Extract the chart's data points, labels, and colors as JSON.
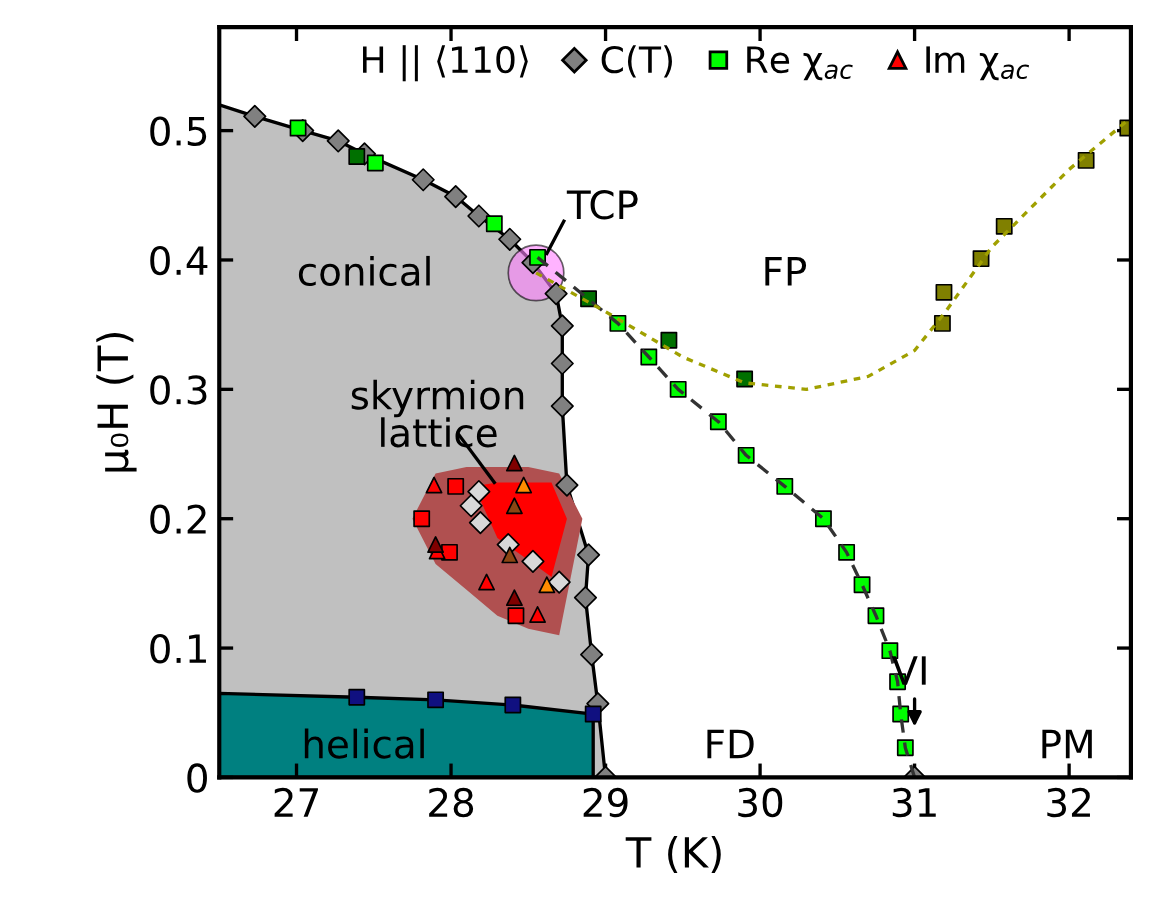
{
  "chart_data": {
    "type": "scatter",
    "xlabel": "T (K)",
    "ylabel": "μ₀H (T)",
    "legend_title": "H || ⟨110⟩",
    "legend": "top",
    "xlim": [
      26.5,
      32.4
    ],
    "ylim": [
      0,
      0.58
    ],
    "xticks": [
      27,
      28,
      29,
      30,
      31,
      32
    ],
    "yticks": [
      0,
      0.1,
      0.2,
      0.3,
      0.4,
      0.5
    ],
    "grid": false,
    "series": [
      {
        "type": "area",
        "color": "#c0c0c0",
        "line_style": "solid",
        "x": [
          26.5,
          26.73,
          27.04,
          27.27,
          27.44,
          27.82,
          28.03,
          28.18,
          28.38,
          28.53,
          28.68,
          28.72,
          28.72,
          28.72,
          28.75,
          28.89,
          28.87,
          28.91,
          28.95,
          29.0,
          26.5
        ],
        "values": [
          0.52,
          0.511,
          0.5,
          0.492,
          0.482,
          0.462,
          0.449,
          0.434,
          0.416,
          0.398,
          0.374,
          0.349,
          0.32,
          0.287,
          0.226,
          0.172,
          0.139,
          0.095,
          0.057,
          0,
          0
        ]
      },
      {
        "type": "area",
        "color": "#008080",
        "line_style": "solid",
        "x": [
          26.5,
          27.39,
          27.9,
          28.4,
          28.92,
          28.92,
          26.5
        ],
        "values": [
          0.065,
          0.062,
          0.06,
          0.056,
          0.049,
          0,
          0
        ]
      },
      {
        "type": "area",
        "color": "#b05050",
        "x": [
          27.75,
          27.9,
          28.1,
          28.3,
          28.5,
          28.7,
          28.85,
          28.7,
          28.5,
          28.3,
          28.1,
          27.9
        ],
        "values": [
          0.2,
          0.235,
          0.24,
          0.24,
          0.24,
          0.235,
          0.2,
          0.11,
          0.115,
          0.125,
          0.145,
          0.165
        ]
      },
      {
        "type": "area",
        "color": "#ff0000",
        "x": [
          28.15,
          28.3,
          28.5,
          28.65,
          28.75,
          28.65,
          28.5,
          28.3
        ],
        "values": [
          0.225,
          0.228,
          0.228,
          0.228,
          0.2,
          0.155,
          0.168,
          0.185
        ]
      },
      {
        "type": "line",
        "color": "#333333",
        "line_style": "dashed",
        "x": [
          28.56,
          29.08,
          29.28,
          29.47,
          29.73,
          29.91,
          30.16,
          30.41,
          30.56,
          30.66,
          30.75,
          30.84,
          30.89,
          30.91,
          30.94,
          31.0
        ],
        "values": [
          0.402,
          0.351,
          0.325,
          0.3,
          0.275,
          0.249,
          0.225,
          0.2,
          0.174,
          0.149,
          0.125,
          0.098,
          0.074,
          0.049,
          0.023,
          0
        ]
      },
      {
        "type": "line",
        "color": "#a0a000",
        "line_style": "dotted",
        "x": [
          28.55,
          29.0,
          29.5,
          29.9,
          30.3,
          30.7,
          31.0,
          31.2,
          31.5,
          32.0,
          32.4
        ],
        "values": [
          0.39,
          0.36,
          0.325,
          0.305,
          0.3,
          0.31,
          0.33,
          0.36,
          0.41,
          0.47,
          0.51
        ]
      },
      {
        "marker": "circle",
        "color": "#ff80ff",
        "x": [
          28.55
        ],
        "values": [
          0.39
        ]
      },
      {
        "name": "C(T)",
        "marker": "diamond",
        "colors": [
          "#808080",
          "#808080",
          "#808080",
          "#808080",
          "#808080",
          "#808080",
          "#808080",
          "#808080",
          "#808080",
          "#808080",
          "#808080",
          "#808080",
          "#808080",
          "#808080",
          "#808080",
          "#808080",
          "#808080",
          "#808080",
          "#808080",
          "#d8d8d8",
          "#d8d8d8",
          "#d8d8d8",
          "#d8d8d8",
          "#d8d8d8",
          "#d8d8d8",
          "#808080"
        ],
        "x": [
          26.73,
          27.04,
          27.27,
          27.44,
          27.82,
          28.03,
          28.18,
          28.38,
          28.53,
          28.68,
          28.72,
          28.72,
          28.72,
          28.75,
          28.89,
          28.87,
          28.91,
          28.95,
          29.0,
          28.18,
          28.13,
          28.19,
          28.37,
          28.53,
          28.7,
          31.0
        ],
        "values": [
          0.511,
          0.5,
          0.492,
          0.482,
          0.462,
          0.449,
          0.434,
          0.416,
          0.398,
          0.374,
          0.349,
          0.32,
          0.287,
          0.226,
          0.172,
          0.139,
          0.095,
          0.057,
          0,
          0.221,
          0.21,
          0.197,
          0.18,
          0.167,
          0.151,
          0
        ]
      },
      {
        "name": "Re χ$_{ac}$",
        "marker": "square",
        "colors": [
          "#00ff00",
          "#00ff00",
          "#00ff00",
          "#00ff00",
          "#00ff00",
          "#00ff00",
          "#00ff00",
          "#00ff00",
          "#00ff00",
          "#00ff00",
          "#00ff00",
          "#00ff00",
          "#00ff00",
          "#00ff00",
          "#00ff00",
          "#00ff00",
          "#00ff00",
          "#00ff00",
          "#007000",
          "#007000",
          "#007000",
          "#007000",
          "#808000",
          "#808000",
          "#808000",
          "#808000",
          "#808000",
          "#808000",
          "#101080",
          "#101080",
          "#101080",
          "#101080",
          "#ff0000",
          "#ff0000",
          "#ff0000",
          "#ff0000"
        ],
        "x": [
          29.08,
          29.28,
          29.47,
          29.73,
          29.91,
          30.16,
          30.41,
          30.56,
          30.66,
          30.75,
          30.84,
          30.89,
          30.91,
          30.94,
          27.01,
          27.51,
          28.28,
          28.56,
          27.39,
          28.89,
          29.41,
          29.9,
          31.18,
          31.19,
          31.43,
          31.58,
          32.11,
          32.38,
          27.39,
          27.9,
          28.4,
          28.92,
          27.81,
          28.03,
          27.99,
          28.42
        ],
        "values": [
          0.351,
          0.325,
          0.3,
          0.275,
          0.249,
          0.225,
          0.2,
          0.174,
          0.149,
          0.125,
          0.098,
          0.074,
          0.049,
          0.023,
          0.502,
          0.475,
          0.428,
          0.402,
          0.48,
          0.37,
          0.338,
          0.308,
          0.351,
          0.375,
          0.401,
          0.426,
          0.477,
          0.502,
          0.062,
          0.06,
          0.056,
          0.049,
          0.2,
          0.225,
          0.174,
          0.125
        ]
      },
      {
        "name": "Im χ$_{ac}$",
        "marker": "triangle",
        "colors": [
          "#ff0000",
          "#ff0000",
          "#ff0000",
          "#ff0000",
          "#800000",
          "#800000",
          "#800000",
          "#ff8c00",
          "#ff8c00",
          "#8b4513",
          "#8b4513"
        ],
        "x": [
          27.89,
          27.91,
          28.23,
          28.56,
          28.41,
          27.9,
          28.41,
          28.47,
          28.62,
          28.41,
          28.38
        ],
        "values": [
          0.226,
          0.175,
          0.151,
          0.126,
          0.243,
          0.18,
          0.139,
          0.226,
          0.149,
          0.21,
          0.172
        ]
      }
    ],
    "annotations": [
      "conical",
      "skyrmion\nlattice",
      "helical",
      {
        "text": "TCP",
        "x": 28.55,
        "y": 0.39
      },
      "FP",
      "FD",
      "PM",
      {
        "text": "VI",
        "x": 31.0,
        "y": 0.05
      }
    ]
  }
}
